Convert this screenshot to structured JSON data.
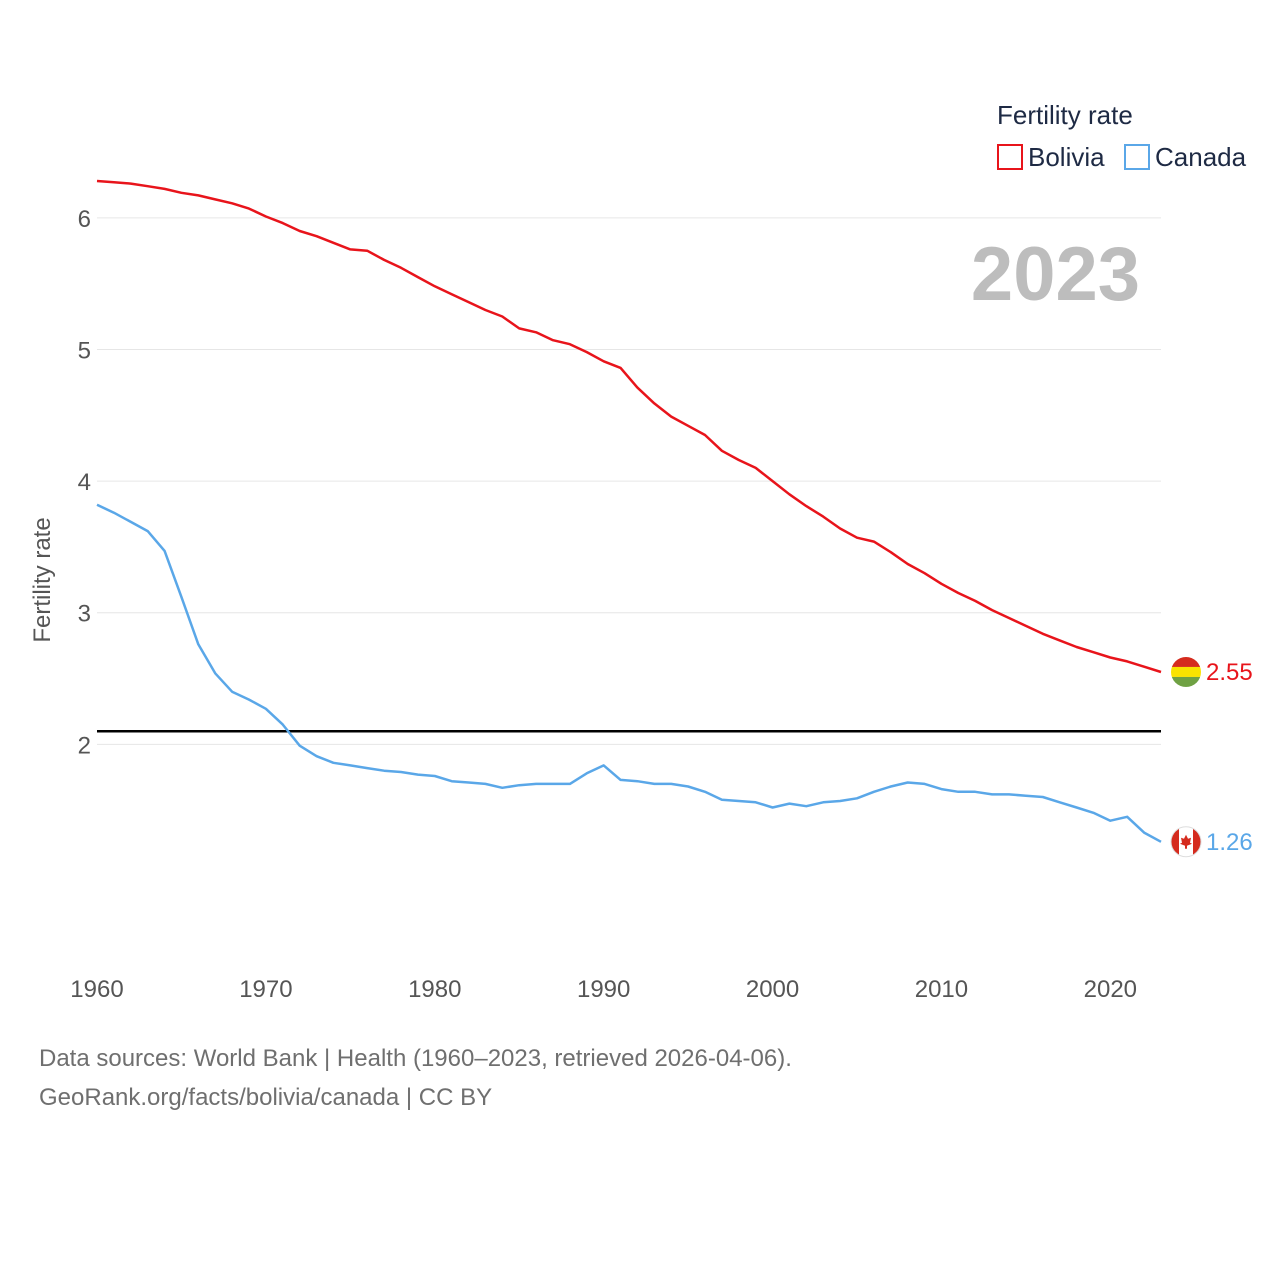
{
  "chart_data": {
    "type": "line",
    "ylabel": "Fertility rate",
    "xlabel": "",
    "xlim": [
      1960,
      2023
    ],
    "ylim": [
      1.0,
      6.5
    ],
    "x_ticks": [
      1960,
      1970,
      1980,
      1990,
      2000,
      2010,
      2020
    ],
    "y_ticks": [
      2,
      3,
      4,
      5,
      6
    ],
    "grid": true,
    "current_year": "2023",
    "reference_line": 2.1,
    "legend": {
      "title": "Fertility rate",
      "position": "top-right"
    },
    "x": [
      1960,
      1961,
      1962,
      1963,
      1964,
      1965,
      1966,
      1967,
      1968,
      1969,
      1970,
      1971,
      1972,
      1973,
      1974,
      1975,
      1976,
      1977,
      1978,
      1979,
      1980,
      1981,
      1982,
      1983,
      1984,
      1985,
      1986,
      1987,
      1988,
      1989,
      1990,
      1991,
      1992,
      1993,
      1994,
      1995,
      1996,
      1997,
      1998,
      1999,
      2000,
      2001,
      2002,
      2003,
      2004,
      2005,
      2006,
      2007,
      2008,
      2009,
      2010,
      2011,
      2012,
      2013,
      2014,
      2015,
      2016,
      2017,
      2018,
      2019,
      2020,
      2021,
      2022,
      2023
    ],
    "series": [
      {
        "name": "Bolivia",
        "color": "#e8141b",
        "end_label": "2.55",
        "values": [
          6.28,
          6.27,
          6.26,
          6.24,
          6.22,
          6.19,
          6.17,
          6.14,
          6.11,
          6.07,
          6.01,
          5.96,
          5.9,
          5.86,
          5.81,
          5.76,
          5.75,
          5.68,
          5.62,
          5.55,
          5.48,
          5.42,
          5.36,
          5.3,
          5.25,
          5.16,
          5.13,
          5.07,
          5.04,
          4.98,
          4.91,
          4.86,
          4.71,
          4.59,
          4.49,
          4.42,
          4.35,
          4.23,
          4.16,
          4.1,
          4.0,
          3.9,
          3.81,
          3.73,
          3.64,
          3.57,
          3.54,
          3.46,
          3.37,
          3.3,
          3.22,
          3.15,
          3.09,
          3.02,
          2.96,
          2.9,
          2.84,
          2.79,
          2.74,
          2.7,
          2.66,
          2.63,
          2.59,
          2.55
        ]
      },
      {
        "name": "Canada",
        "color": "#5aa7e8",
        "end_label": "1.26",
        "values": [
          3.82,
          3.76,
          3.69,
          3.62,
          3.47,
          3.12,
          2.76,
          2.54,
          2.4,
          2.34,
          2.27,
          2.15,
          1.99,
          1.91,
          1.86,
          1.84,
          1.82,
          1.8,
          1.79,
          1.77,
          1.76,
          1.72,
          1.71,
          1.7,
          1.67,
          1.69,
          1.7,
          1.7,
          1.7,
          1.78,
          1.84,
          1.73,
          1.72,
          1.7,
          1.7,
          1.68,
          1.64,
          1.58,
          1.57,
          1.56,
          1.52,
          1.55,
          1.53,
          1.56,
          1.57,
          1.59,
          1.64,
          1.68,
          1.71,
          1.7,
          1.66,
          1.64,
          1.64,
          1.62,
          1.62,
          1.61,
          1.6,
          1.56,
          1.52,
          1.48,
          1.42,
          1.45,
          1.33,
          1.26
        ]
      }
    ]
  },
  "footer": {
    "line1": "Data sources: World Bank | Health (1960–2023, retrieved 2026-04-06).",
    "line2": "GeoRank.org/facts/bolivia/canada | CC BY"
  }
}
